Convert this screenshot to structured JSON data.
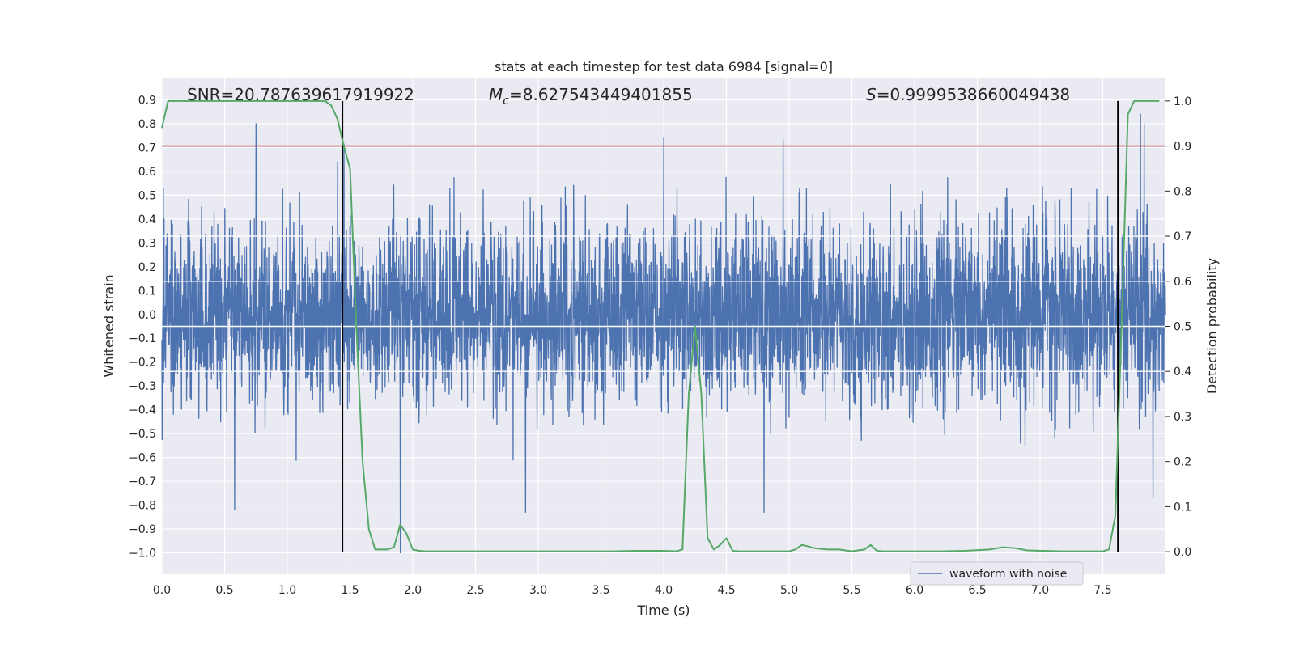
{
  "chart_data": {
    "type": "line",
    "title": "stats at each timestep for test data 6984 [signal=0]",
    "xlabel": "Time (s)",
    "ylabel": "Whitened strain",
    "y2label": "Detection probability",
    "xlim": [
      0.0,
      8.0
    ],
    "ylim": [
      -1.09,
      0.99
    ],
    "y2lim": [
      -0.05,
      1.05
    ],
    "xticks": [
      "0.0",
      "0.5",
      "1.0",
      "1.5",
      "2.0",
      "2.5",
      "3.0",
      "3.5",
      "4.0",
      "4.5",
      "5.0",
      "5.5",
      "6.0",
      "6.5",
      "7.0",
      "7.5"
    ],
    "yticks": [
      "-1.0",
      "-0.9",
      "-0.8",
      "-0.7",
      "-0.6",
      "-0.5",
      "-0.4",
      "-0.3",
      "-0.2",
      "-0.1",
      "0.0",
      "0.1",
      "0.2",
      "0.3",
      "0.4",
      "0.5",
      "0.6",
      "0.7",
      "0.8",
      "0.9"
    ],
    "y2ticks": [
      "0.0",
      "0.1",
      "0.2",
      "0.3",
      "0.4",
      "0.5",
      "0.6",
      "0.7",
      "0.8",
      "0.9",
      "1.0"
    ],
    "annotations": {
      "snr": "SNR=20.787639617919922",
      "mc_prefix": "M",
      "mc_sub": "c",
      "mc_value": "=8.627543449401855",
      "s_prefix": "S",
      "s_value": "=0.9999538660049438"
    },
    "threshold": {
      "value": 0.9,
      "axis": "right",
      "color": "#c44e52"
    },
    "vertical_markers": [
      1.44,
      7.62
    ],
    "series": [
      {
        "name": "waveform with noise",
        "axis": "left",
        "color": "#4c72b0",
        "description_range": [
          -1.0,
          0.8
        ],
        "notable_peaks": [
          {
            "t": 0.58,
            "y": -0.82
          },
          {
            "t": 0.75,
            "y": 0.8
          },
          {
            "t": 1.4,
            "y": 0.64
          },
          {
            "t": 1.9,
            "y": -1.0
          },
          {
            "t": 2.9,
            "y": -0.83
          },
          {
            "t": 4.0,
            "y": 0.74
          },
          {
            "t": 4.8,
            "y": -0.83
          },
          {
            "t": 7.8,
            "y": 0.84
          },
          {
            "t": 7.83,
            "y": 0.8
          },
          {
            "t": 7.9,
            "y": -0.77
          }
        ]
      },
      {
        "name": "",
        "axis": "right",
        "color": "#55a868",
        "x": [
          0.0,
          0.05,
          0.1,
          0.2,
          0.3,
          0.4,
          0.5,
          0.6,
          0.7,
          0.8,
          0.9,
          1.0,
          1.1,
          1.2,
          1.3,
          1.35,
          1.4,
          1.45,
          1.5,
          1.55,
          1.6,
          1.65,
          1.7,
          1.75,
          1.8,
          1.85,
          1.9,
          1.95,
          2.0,
          2.05,
          2.1,
          2.2,
          2.4,
          2.6,
          2.8,
          3.0,
          3.2,
          3.4,
          3.6,
          3.8,
          4.0,
          4.1,
          4.15,
          4.2,
          4.25,
          4.3,
          4.35,
          4.4,
          4.45,
          4.5,
          4.55,
          4.6,
          4.7,
          4.8,
          5.0,
          5.05,
          5.1,
          5.15,
          5.2,
          5.3,
          5.4,
          5.5,
          5.6,
          5.65,
          5.7,
          5.75,
          5.8,
          5.9,
          6.0,
          6.2,
          6.4,
          6.6,
          6.7,
          6.8,
          6.9,
          7.0,
          7.2,
          7.4,
          7.5,
          7.55,
          7.6,
          7.65,
          7.7,
          7.75,
          7.8,
          7.85,
          7.9,
          7.95
        ],
        "values": [
          0.94,
          1.0,
          1.0,
          1.0,
          1.0,
          1.0,
          1.0,
          1.0,
          1.0,
          1.0,
          1.0,
          1.0,
          1.0,
          1.0,
          1.0,
          0.99,
          0.96,
          0.9,
          0.85,
          0.5,
          0.2,
          0.05,
          0.005,
          0.005,
          0.005,
          0.01,
          0.06,
          0.04,
          0.005,
          0.002,
          0.001,
          0.001,
          0.001,
          0.001,
          0.001,
          0.001,
          0.001,
          0.001,
          0.001,
          0.002,
          0.002,
          0.001,
          0.005,
          0.35,
          0.5,
          0.35,
          0.03,
          0.005,
          0.015,
          0.03,
          0.002,
          0.001,
          0.001,
          0.001,
          0.001,
          0.005,
          0.015,
          0.012,
          0.008,
          0.005,
          0.005,
          0.001,
          0.005,
          0.015,
          0.002,
          0.001,
          0.001,
          0.001,
          0.001,
          0.001,
          0.002,
          0.005,
          0.01,
          0.008,
          0.003,
          0.002,
          0.001,
          0.001,
          0.001,
          0.005,
          0.08,
          0.5,
          0.97,
          1.0,
          1.0,
          1.0,
          1.0,
          1.0
        ]
      }
    ],
    "legend": {
      "placement": "bottom-right",
      "entries": [
        "waveform with noise"
      ]
    },
    "grid": true,
    "background": "#eaeaf2"
  }
}
